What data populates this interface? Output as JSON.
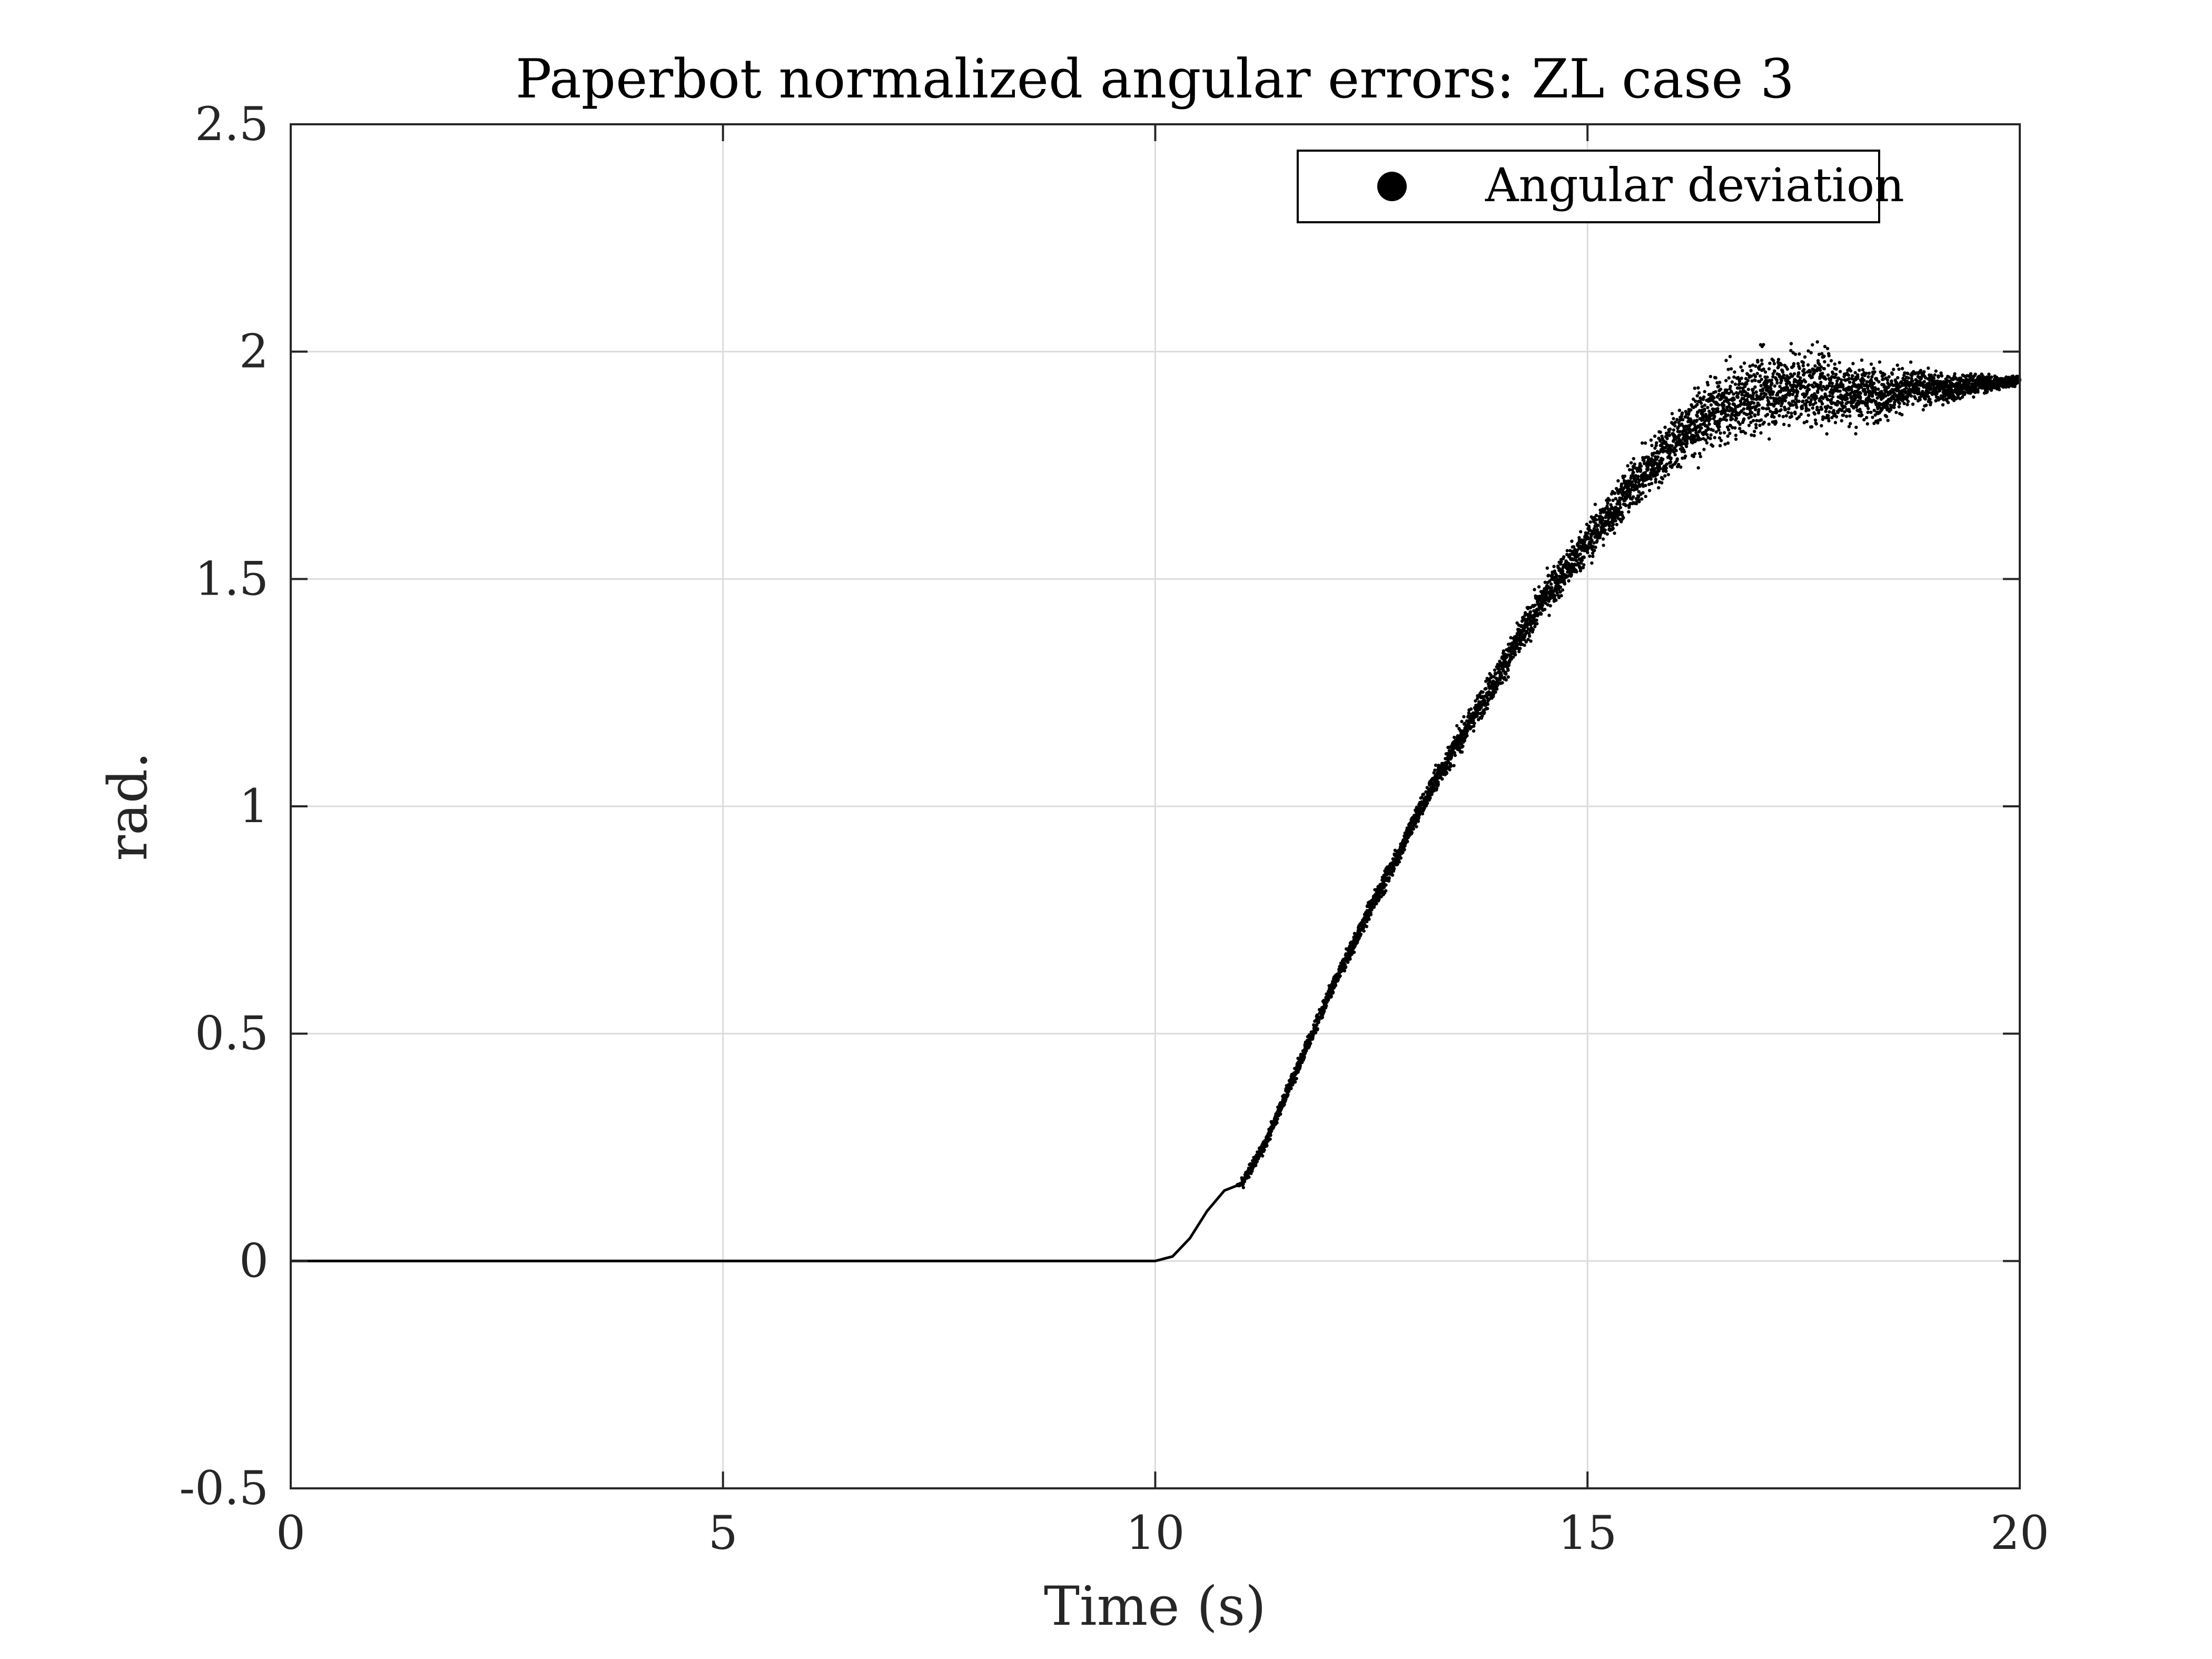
{
  "chart_data": {
    "type": "scatter",
    "title": "Paperbot normalized angular errors: ZL case 3",
    "xlabel": "Time (s)",
    "ylabel": "rad.",
    "xlim": [
      0,
      20
    ],
    "ylim": [
      -0.5,
      2.5
    ],
    "xticks": [
      0,
      5,
      10,
      15,
      20
    ],
    "xtick_labels": [
      "0",
      "5",
      "10",
      "15",
      "20"
    ],
    "yticks": [
      -0.5,
      0,
      0.5,
      1,
      1.5,
      2,
      2.5
    ],
    "ytick_labels": [
      "-0.5",
      "0",
      "0.5",
      "1",
      "1.5",
      "2",
      "2.5"
    ],
    "grid": true,
    "legend": {
      "position": "top-right",
      "entries": [
        "Angular deviation"
      ]
    },
    "series": [
      {
        "name": "Angular deviation",
        "color": "#000000",
        "marker": "dot",
        "x": [
          0,
          1,
          2,
          3,
          4,
          5,
          6,
          7,
          8,
          9,
          10,
          10.2,
          10.4,
          10.6,
          10.8,
          11,
          11.25,
          11.5,
          11.75,
          12,
          12.25,
          12.5,
          12.75,
          13,
          13.25,
          13.5,
          13.75,
          14,
          14.25,
          14.5,
          14.75,
          15,
          15.25,
          15.5,
          15.75,
          16,
          16.25,
          16.5,
          16.75,
          17,
          17.25,
          17.5,
          17.75,
          18,
          18.25,
          18.5,
          18.75,
          19,
          19.25,
          19.5,
          19.75,
          20
        ],
        "y": [
          0,
          0,
          0,
          0,
          0,
          0,
          0,
          0,
          0,
          0,
          0,
          0.01,
          0.05,
          0.11,
          0.155,
          0.17,
          0.25,
          0.36,
          0.47,
          0.58,
          0.68,
          0.78,
          0.87,
          0.97,
          1.06,
          1.14,
          1.22,
          1.3,
          1.38,
          1.46,
          1.52,
          1.58,
          1.64,
          1.7,
          1.75,
          1.8,
          1.84,
          1.87,
          1.89,
          1.91,
          1.92,
          1.92,
          1.92,
          1.91,
          1.91,
          1.91,
          1.92,
          1.92,
          1.92,
          1.93,
          1.93,
          1.94
        ]
      }
    ]
  }
}
